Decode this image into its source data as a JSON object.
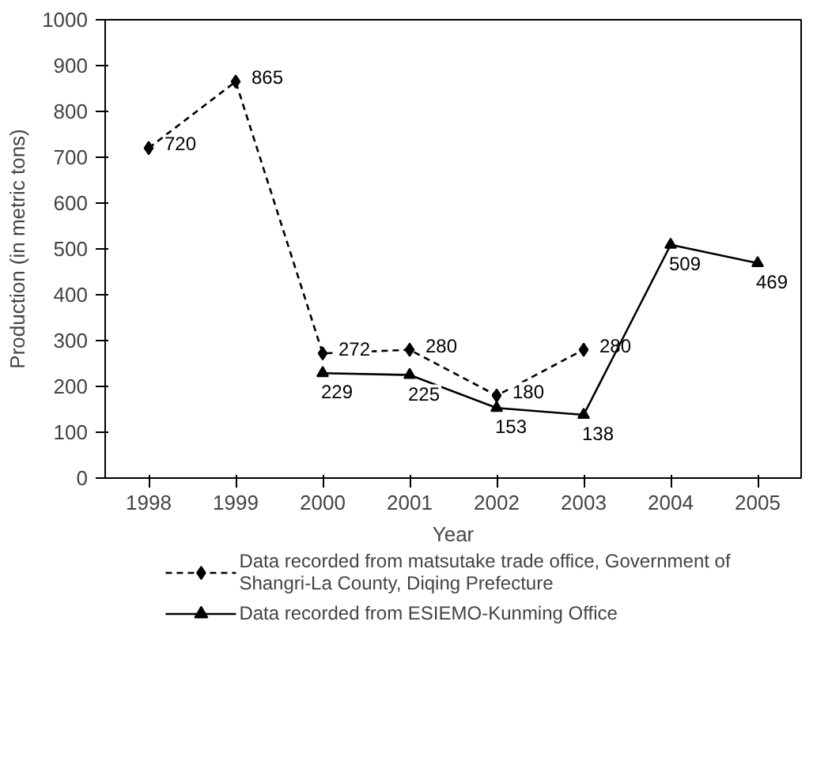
{
  "chart_data": {
    "type": "line",
    "xlabel": "Year",
    "ylabel": "Production (in metric tons)",
    "categories": [
      "1998",
      "1999",
      "2000",
      "2001",
      "2002",
      "2003",
      "2004",
      "2005"
    ],
    "ylim": [
      0,
      1000
    ],
    "yticks": [
      0,
      100,
      200,
      300,
      400,
      500,
      600,
      700,
      800,
      900,
      1000
    ],
    "grid": false,
    "legend": "bottom",
    "data_labels": true,
    "series": [
      {
        "name": "Data recorded from matsutake trade office, Government of Shangri-La County, Diqing Prefecture",
        "color": "#000000",
        "marker": "diamond",
        "line_style": "dashed",
        "values": [
          720,
          865,
          272,
          280,
          180,
          280,
          null,
          null
        ]
      },
      {
        "name": "Data recorded from ESIEMO-Kunming Office",
        "color": "#000000",
        "marker": "triangle",
        "line_style": "solid",
        "values": [
          null,
          null,
          229,
          225,
          153,
          138,
          509,
          469
        ]
      }
    ]
  }
}
